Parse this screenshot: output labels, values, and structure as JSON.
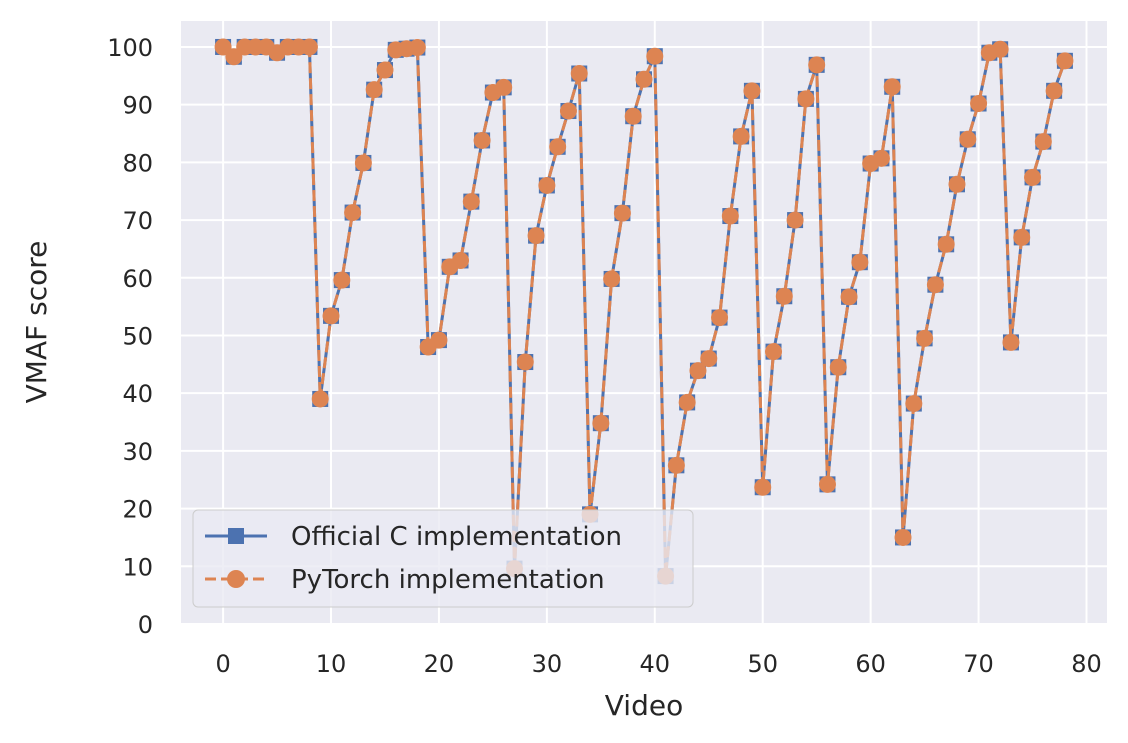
{
  "chart_data": {
    "type": "line",
    "xlabel": "Video",
    "ylabel": "VMAF score",
    "xlim": [
      -3.9,
      81.9
    ],
    "ylim": [
      0,
      104.5
    ],
    "xticks": [
      0,
      10,
      20,
      30,
      40,
      50,
      60,
      70,
      80
    ],
    "yticks": [
      0,
      10,
      20,
      30,
      40,
      50,
      60,
      70,
      80,
      90,
      100
    ],
    "grid": true,
    "legend_position": "lower-left",
    "x": [
      0,
      1,
      2,
      3,
      4,
      5,
      6,
      7,
      8,
      9,
      10,
      11,
      12,
      13,
      14,
      15,
      16,
      17,
      18,
      19,
      20,
      21,
      22,
      23,
      24,
      25,
      26,
      27,
      28,
      29,
      30,
      31,
      32,
      33,
      34,
      35,
      36,
      37,
      38,
      39,
      40,
      41,
      42,
      43,
      44,
      45,
      46,
      47,
      48,
      49,
      50,
      51,
      52,
      53,
      54,
      55,
      56,
      57,
      58,
      59,
      60,
      61,
      62,
      63,
      64,
      65,
      66,
      67,
      68,
      69,
      70,
      71,
      72,
      73,
      74,
      75,
      76,
      77,
      78
    ],
    "series": [
      {
        "name": "Official C implementation",
        "color": "#4c72b0",
        "marker": "square",
        "linestyle": "solid",
        "values": [
          100,
          98.3,
          100,
          100,
          100,
          99,
          100,
          100,
          100,
          39,
          53.4,
          59.6,
          71.3,
          79.9,
          92.6,
          96,
          99.5,
          99.7,
          99.9,
          48,
          49.2,
          61.9,
          63,
          73.2,
          83.8,
          92.1,
          93,
          9.6,
          45.4,
          67.3,
          76,
          82.7,
          88.9,
          95.4,
          19,
          34.8,
          59.8,
          71.2,
          88,
          94.4,
          98.4,
          8.3,
          27.5,
          38.4,
          43.9,
          46,
          53.1,
          70.7,
          84.5,
          92.4,
          23.7,
          47.2,
          56.8,
          70,
          91,
          96.9,
          24.2,
          44.5,
          56.7,
          62.7,
          79.8,
          80.7,
          93.1,
          15,
          38.2,
          49.5,
          58.8,
          65.8,
          76.2,
          84,
          90.2,
          99,
          99.6,
          48.8,
          67,
          77.4,
          83.6,
          92.4,
          97.6
        ]
      },
      {
        "name": "PyTorch implementation",
        "color": "#dd8452",
        "marker": "circle",
        "linestyle": "dashed",
        "values": [
          100,
          98.3,
          100,
          100,
          100,
          99,
          100,
          100,
          100,
          39,
          53.4,
          59.6,
          71.3,
          79.9,
          92.6,
          96,
          99.5,
          99.7,
          99.9,
          48,
          49.2,
          61.9,
          63,
          73.2,
          83.8,
          92.1,
          93,
          9.6,
          45.4,
          67.3,
          76,
          82.7,
          88.9,
          95.4,
          19,
          34.8,
          59.8,
          71.2,
          88,
          94.4,
          98.4,
          8.3,
          27.5,
          38.4,
          43.9,
          46,
          53.1,
          70.7,
          84.5,
          92.4,
          23.7,
          47.2,
          56.8,
          70,
          91,
          96.9,
          24.2,
          44.5,
          56.7,
          62.7,
          79.8,
          80.7,
          93.1,
          15,
          38.2,
          49.5,
          58.8,
          65.8,
          76.2,
          84,
          90.2,
          99,
          99.6,
          48.8,
          67,
          77.4,
          83.6,
          92.4,
          97.6
        ]
      }
    ],
    "colors": {
      "plot_background": "#eaeaf2",
      "grid": "#ffffff",
      "text": "#262626"
    }
  }
}
